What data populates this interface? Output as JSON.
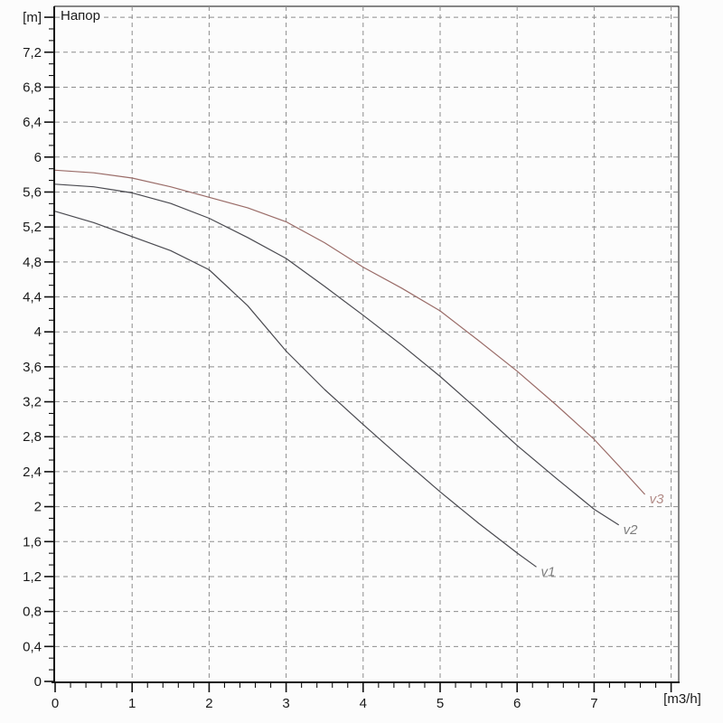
{
  "page": {
    "background": "#fcfcfc"
  },
  "chart_data": {
    "type": "line",
    "title": "Напор",
    "y_unit_label": "[m]",
    "x_unit_label": "[m3/h]",
    "x_axis": {
      "min": 0,
      "max": 8.1,
      "major_step": 1,
      "minor_step": 0.2,
      "labeled_ticks": [
        "0",
        "1",
        "2",
        "3",
        "4",
        "5",
        "6",
        "7"
      ],
      "gridline_positions": [
        1,
        2,
        3,
        4,
        5,
        6,
        7,
        8
      ]
    },
    "y_axis": {
      "min": 0,
      "max": 7.72,
      "major_step": 0.4,
      "minors_per_major": 2,
      "labeled_ticks": [
        "0",
        "0,4",
        "0,8",
        "1,2",
        "1,6",
        "2",
        "2,4",
        "2,8",
        "3,2",
        "3,6",
        "4",
        "4,4",
        "4,8",
        "5,2",
        "5,6",
        "6",
        "6,4",
        "6,8",
        "7,2"
      ],
      "unit_tick_value": 7.6,
      "decimal_separator": ","
    },
    "grid": {
      "color": "#8d8d8d",
      "dash": "5 4",
      "on": true
    },
    "axis_color": "#111111",
    "legend_position": "curve-end-labels",
    "series": [
      {
        "name": "v1",
        "color": "#4a4a50",
        "label_color": "#7e7e7e",
        "points": [
          [
            0,
            5.38
          ],
          [
            0.5,
            5.25
          ],
          [
            1,
            5.09
          ],
          [
            1.5,
            4.93
          ],
          [
            2,
            4.71
          ],
          [
            2.5,
            4.3
          ],
          [
            3,
            3.78
          ],
          [
            3.5,
            3.34
          ],
          [
            4,
            2.94
          ],
          [
            4.5,
            2.55
          ],
          [
            5,
            2.17
          ],
          [
            5.5,
            1.81
          ],
          [
            6,
            1.47
          ],
          [
            6.25,
            1.31
          ]
        ]
      },
      {
        "name": "v2",
        "color": "#4a4a50",
        "label_color": "#7e7e7e",
        "points": [
          [
            0,
            5.69
          ],
          [
            0.5,
            5.66
          ],
          [
            1,
            5.59
          ],
          [
            1.5,
            5.47
          ],
          [
            2,
            5.3
          ],
          [
            2.5,
            5.08
          ],
          [
            3,
            4.84
          ],
          [
            3.5,
            4.52
          ],
          [
            4,
            4.19
          ],
          [
            4.5,
            3.85
          ],
          [
            5,
            3.49
          ],
          [
            5.5,
            3.1
          ],
          [
            6,
            2.7
          ],
          [
            6.5,
            2.33
          ],
          [
            7,
            1.97
          ],
          [
            7.32,
            1.79
          ]
        ]
      },
      {
        "name": "v3",
        "color": "#9a6c68",
        "label_color": "#b18a86",
        "points": [
          [
            0,
            5.85
          ],
          [
            0.5,
            5.82
          ],
          [
            1,
            5.76
          ],
          [
            1.5,
            5.66
          ],
          [
            2,
            5.54
          ],
          [
            2.5,
            5.42
          ],
          [
            3,
            5.26
          ],
          [
            3.5,
            5.02
          ],
          [
            4,
            4.74
          ],
          [
            4.5,
            4.5
          ],
          [
            5,
            4.24
          ],
          [
            5.5,
            3.9
          ],
          [
            6,
            3.55
          ],
          [
            6.5,
            3.17
          ],
          [
            7,
            2.77
          ],
          [
            7.35,
            2.44
          ],
          [
            7.66,
            2.14
          ]
        ]
      }
    ]
  }
}
